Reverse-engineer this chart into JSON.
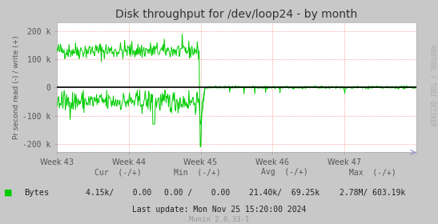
{
  "title": "Disk throughput for /dev/loop24 - by month",
  "ylabel": "Pr second read (-) / write (+)",
  "yticks": [
    -200000,
    -100000,
    0,
    100000,
    200000
  ],
  "ytick_labels": [
    "-200 k",
    "-100 k",
    "0",
    "100 k",
    "200 k"
  ],
  "ylim": [
    -230000,
    230000
  ],
  "xtick_positions": [
    0.0,
    0.2,
    0.4,
    0.6,
    0.8
  ],
  "xtick_labels": [
    "Week 43",
    "Week 44",
    "Week 45",
    "Week 46",
    "Week 47"
  ],
  "line_color": "#00cc00",
  "zero_line_color": "#000000",
  "grid_color_h": "#ff4444",
  "grid_color_v": "#ff4444",
  "fig_bg_color": "#c8c8c8",
  "plot_bg_color": "#ffffff",
  "right_label": "RRDTOOL / TOBI OETIKER",
  "legend_label": "Bytes",
  "legend_color": "#00cc00",
  "cur_label": "Cur  (-/+)",
  "cur_value": "4.15k/    0.00",
  "min_label": "Min  (-/+)",
  "min_value": "0.00 /    0.00",
  "avg_label": "Avg  (-/+)",
  "avg_value": "21.40k/  69.25k",
  "max_label": "Max  (-/+)",
  "max_value": "2.78M/ 603.19k",
  "last_update": "Last update: Mon Nov 25 15:20:00 2024",
  "munin_version": "Munin 2.0.33-1",
  "axis_color": "#aaaaaa",
  "text_color": "#555555",
  "title_color": "#333333",
  "stats_color": "#222222"
}
